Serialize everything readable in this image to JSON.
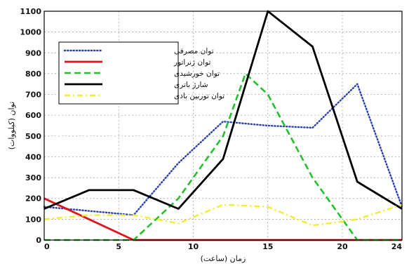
{
  "chart_data": {
    "type": "line",
    "xlabel": "زمان (ساعت)",
    "ylabel": "توان (کیلووات)",
    "xlim": [
      0,
      24
    ],
    "ylim": [
      0,
      1100
    ],
    "xticks": [
      "0",
      "5",
      "10",
      "15",
      "20",
      "24"
    ],
    "xtick_values": [
      0,
      5,
      10,
      15,
      20,
      24
    ],
    "yticks": [
      "0",
      "100",
      "200",
      "300",
      "400",
      "500",
      "600",
      "700",
      "800",
      "900",
      "1000",
      "1100"
    ],
    "ytick_values": [
      0,
      100,
      200,
      300,
      400,
      500,
      600,
      700,
      800,
      900,
      1000,
      1100
    ],
    "grid": true,
    "legend_position": "top-left",
    "series": [
      {
        "name": "توان مصرفی",
        "color": "#2b3fb5",
        "style": "dotted",
        "x": [
          0,
          6,
          9,
          12,
          15,
          18,
          21,
          24
        ],
        "y": [
          160,
          120,
          370,
          570,
          550,
          540,
          750,
          160
        ]
      },
      {
        "name": "توان ژنراتور",
        "color": "#e0141e",
        "style": "solid",
        "x": [
          0,
          6,
          9,
          12,
          15,
          18,
          21,
          24
        ],
        "y": [
          200,
          0,
          0,
          0,
          0,
          0,
          0,
          0
        ]
      },
      {
        "name": "توان خورشیدی",
        "color": "#22c12a",
        "style": "dashed",
        "x": [
          0,
          6,
          9,
          12,
          13.5,
          15,
          18,
          21,
          24
        ],
        "y": [
          0,
          0,
          200,
          500,
          800,
          700,
          300,
          0,
          0
        ]
      },
      {
        "name": "شارژ باتری",
        "color": "#000000",
        "style": "solid",
        "x": [
          0,
          3,
          6,
          9,
          12,
          15,
          18,
          21,
          24
        ],
        "y": [
          150,
          240,
          240,
          150,
          390,
          1100,
          930,
          280,
          150
        ]
      },
      {
        "name": "توان توربین بادی",
        "color": "#f2ee2e",
        "style": "dashdot",
        "x": [
          0,
          3,
          6,
          9,
          12,
          15,
          18,
          21,
          24
        ],
        "y": [
          100,
          120,
          120,
          80,
          170,
          160,
          70,
          100,
          170
        ]
      }
    ]
  }
}
